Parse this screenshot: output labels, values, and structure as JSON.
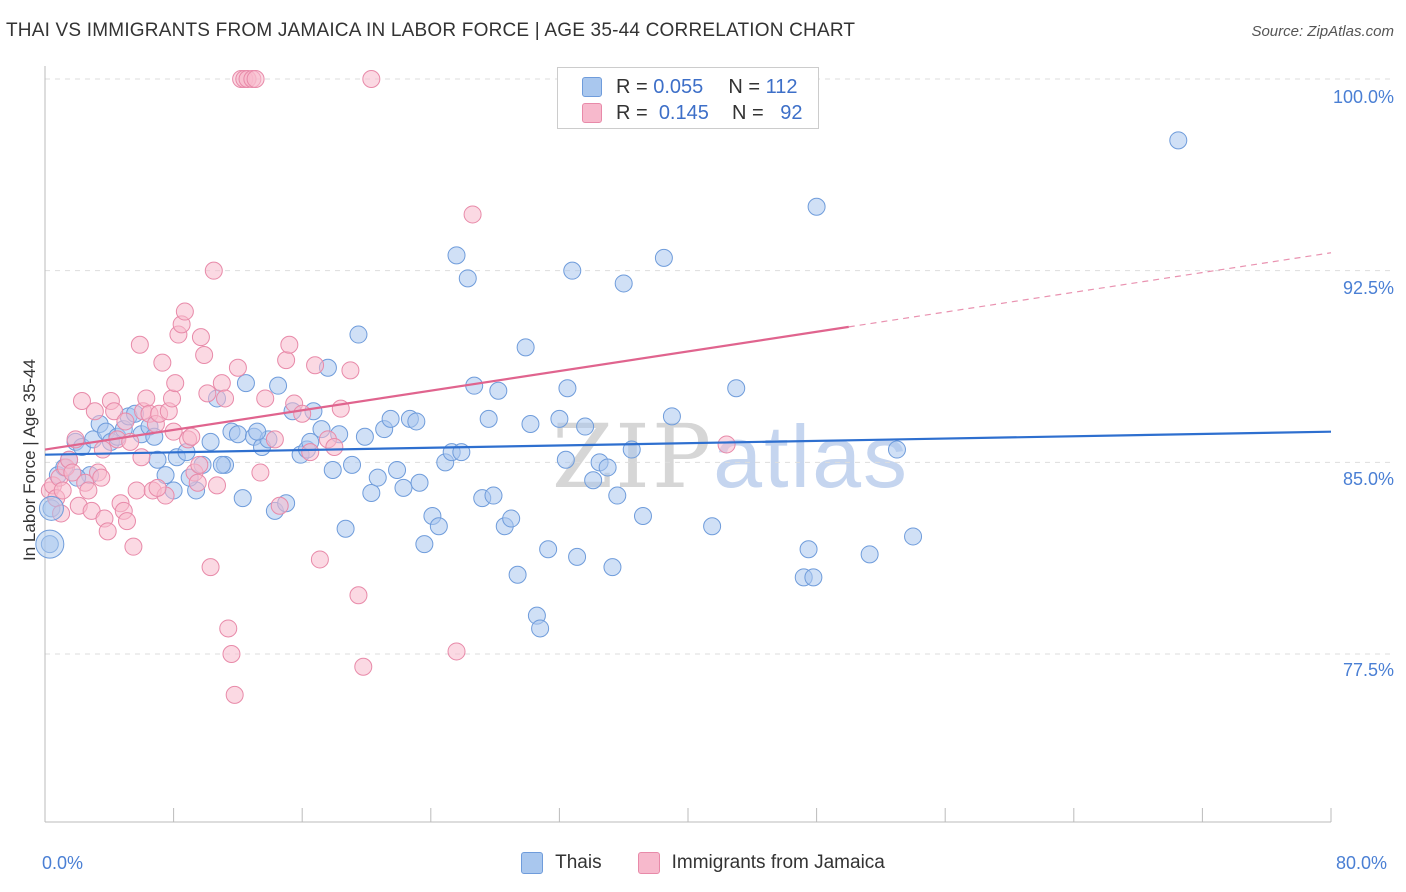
{
  "title": "THAI VS IMMIGRANTS FROM JAMAICA IN LABOR FORCE | AGE 35-44 CORRELATION CHART",
  "source": "Source: ZipAtlas.com",
  "watermark": {
    "part1": "ZIP",
    "part2": "atlas"
  },
  "colors": {
    "thai_fill": "#a9c7ee",
    "thai_stroke": "#6f9cdb",
    "thai_line": "#2e6fcf",
    "jam_fill": "#f7b9cc",
    "jam_stroke": "#e88aa9",
    "jam_line": "#e0648e",
    "grid": "#dddddd",
    "axis_text": "#4a7fd4"
  },
  "legend_top": {
    "rows": [
      {
        "r_label": "R =",
        "r_value": "0.055",
        "n_label": "N =",
        "n_value": "112"
      },
      {
        "r_label": "R =",
        "r_value": "0.145",
        "n_label": "N =",
        "n_value": "92"
      }
    ]
  },
  "legend_bottom": {
    "thai": "Thais",
    "jamaica": "Immigrants from Jamaica"
  },
  "chart_data": {
    "type": "scatter",
    "title": "THAI VS IMMIGRANTS FROM JAMAICA IN LABOR FORCE | AGE 35-44 CORRELATION CHART",
    "xlabel": "",
    "ylabel": "In Labor Force | Age 35-44",
    "xlim": [
      0,
      80
    ],
    "ylim": [
      70,
      101
    ],
    "x_tick_labels": [
      "0.0%",
      "80.0%"
    ],
    "y_ticks": [
      77.5,
      85.0,
      92.5,
      100.0
    ],
    "y_tick_labels": [
      "77.5%",
      "85.0%",
      "92.5%",
      "100.0%"
    ],
    "grid": true,
    "legend_position": "top-center",
    "series": [
      {
        "name": "Thais",
        "R": 0.055,
        "N": 112,
        "trend": {
          "x0": 0,
          "y0": 85.3,
          "x1": 80,
          "y1": 86.2
        },
        "points": [
          [
            0.4,
            83.2
          ],
          [
            0.3,
            81.8
          ],
          [
            0.8,
            84.5
          ],
          [
            1.2,
            84.8
          ],
          [
            1.5,
            85.1
          ],
          [
            1.9,
            85.8
          ],
          [
            2.3,
            85.6
          ],
          [
            2.8,
            84.5
          ],
          [
            3.0,
            85.9
          ],
          [
            3.4,
            86.5
          ],
          [
            3.8,
            86.2
          ],
          [
            4.1,
            85.8
          ],
          [
            4.5,
            86.0
          ],
          [
            4.9,
            86.3
          ],
          [
            5.2,
            86.8
          ],
          [
            5.6,
            86.9
          ],
          [
            6.0,
            86.1
          ],
          [
            6.5,
            86.4
          ],
          [
            7.0,
            85.1
          ],
          [
            7.5,
            84.5
          ],
          [
            8.0,
            83.9
          ],
          [
            8.2,
            85.2
          ],
          [
            8.8,
            85.4
          ],
          [
            9.4,
            83.9
          ],
          [
            9.8,
            84.9
          ],
          [
            10.3,
            85.8
          ],
          [
            10.7,
            87.5
          ],
          [
            11.2,
            84.9
          ],
          [
            11.6,
            86.2
          ],
          [
            12.0,
            86.1
          ],
          [
            12.3,
            83.6
          ],
          [
            12.5,
            88.1
          ],
          [
            13.0,
            86.0
          ],
          [
            13.5,
            85.6
          ],
          [
            13.9,
            85.9
          ],
          [
            14.3,
            83.1
          ],
          [
            14.5,
            88.0
          ],
          [
            15.0,
            83.4
          ],
          [
            15.4,
            87.0
          ],
          [
            15.9,
            85.3
          ],
          [
            16.3,
            85.5
          ],
          [
            16.7,
            87.0
          ],
          [
            17.2,
            86.3
          ],
          [
            17.6,
            88.7
          ],
          [
            17.9,
            84.7
          ],
          [
            18.3,
            86.1
          ],
          [
            18.7,
            82.4
          ],
          [
            19.1,
            84.9
          ],
          [
            19.5,
            90.0
          ],
          [
            19.9,
            86.0
          ],
          [
            20.3,
            83.8
          ],
          [
            20.7,
            84.4
          ],
          [
            21.1,
            86.3
          ],
          [
            21.5,
            86.7
          ],
          [
            21.9,
            84.7
          ],
          [
            22.3,
            84.0
          ],
          [
            22.7,
            86.7
          ],
          [
            23.1,
            86.6
          ],
          [
            23.3,
            84.2
          ],
          [
            23.6,
            81.8
          ],
          [
            24.1,
            82.9
          ],
          [
            24.5,
            82.5
          ],
          [
            24.9,
            85.0
          ],
          [
            25.3,
            85.4
          ],
          [
            25.6,
            93.1
          ],
          [
            25.9,
            85.4
          ],
          [
            26.3,
            92.2
          ],
          [
            26.7,
            88.0
          ],
          [
            27.2,
            83.6
          ],
          [
            27.6,
            86.7
          ],
          [
            27.9,
            83.7
          ],
          [
            28.2,
            87.8
          ],
          [
            28.6,
            82.5
          ],
          [
            29.0,
            82.8
          ],
          [
            29.4,
            80.6
          ],
          [
            29.9,
            89.5
          ],
          [
            30.2,
            86.5
          ],
          [
            30.6,
            79.0
          ],
          [
            30.8,
            78.5
          ],
          [
            31.3,
            81.6
          ],
          [
            32.0,
            86.7
          ],
          [
            32.4,
            85.1
          ],
          [
            32.8,
            92.5
          ],
          [
            32.5,
            87.9
          ],
          [
            33.1,
            81.3
          ],
          [
            33.6,
            86.4
          ],
          [
            34.1,
            84.3
          ],
          [
            34.5,
            85.0
          ],
          [
            35.0,
            84.8
          ],
          [
            35.3,
            80.9
          ],
          [
            35.6,
            83.7
          ],
          [
            36.0,
            92.0
          ],
          [
            36.5,
            85.5
          ],
          [
            37.2,
            82.9
          ],
          [
            38.5,
            93.0
          ],
          [
            39.0,
            86.8
          ],
          [
            41.5,
            82.5
          ],
          [
            43.0,
            87.9
          ],
          [
            47.2,
            80.5
          ],
          [
            47.5,
            81.6
          ],
          [
            47.8,
            80.5
          ],
          [
            48.0,
            95.0
          ],
          [
            51.3,
            81.4
          ],
          [
            53.0,
            85.5
          ],
          [
            54.0,
            82.1
          ],
          [
            70.5,
            97.6
          ],
          [
            2.0,
            84.4
          ],
          [
            6.8,
            86.0
          ],
          [
            9.0,
            84.4
          ],
          [
            11.0,
            84.9
          ],
          [
            13.2,
            86.2
          ],
          [
            16.5,
            85.8
          ]
        ]
      },
      {
        "name": "Immigrants from Jamaica",
        "R": 0.145,
        "N": 92,
        "trend": {
          "x0": 0,
          "y0": 85.5,
          "x1": 50,
          "y1": 90.3
        },
        "trend_dashed": {
          "x0": 50,
          "y0": 90.3,
          "x1": 80,
          "y1": 93.2
        },
        "points": [
          [
            0.3,
            83.9
          ],
          [
            0.5,
            84.1
          ],
          [
            0.7,
            83.6
          ],
          [
            0.9,
            84.4
          ],
          [
            1.1,
            83.9
          ],
          [
            1.3,
            84.8
          ],
          [
            1.5,
            85.1
          ],
          [
            1.7,
            84.6
          ],
          [
            1.9,
            85.9
          ],
          [
            2.1,
            83.3
          ],
          [
            2.3,
            87.4
          ],
          [
            2.5,
            84.2
          ],
          [
            2.7,
            83.9
          ],
          [
            2.9,
            83.1
          ],
          [
            3.1,
            87.0
          ],
          [
            3.3,
            84.6
          ],
          [
            3.5,
            84.4
          ],
          [
            3.7,
            82.8
          ],
          [
            3.9,
            82.3
          ],
          [
            4.1,
            87.4
          ],
          [
            4.3,
            87.0
          ],
          [
            4.5,
            85.9
          ],
          [
            4.7,
            83.4
          ],
          [
            4.9,
            83.1
          ],
          [
            5.1,
            82.7
          ],
          [
            5.3,
            85.8
          ],
          [
            5.5,
            81.7
          ],
          [
            5.7,
            83.9
          ],
          [
            5.9,
            89.6
          ],
          [
            6.1,
            87.0
          ],
          [
            6.3,
            87.5
          ],
          [
            6.5,
            86.9
          ],
          [
            6.7,
            83.9
          ],
          [
            6.9,
            86.5
          ],
          [
            7.1,
            86.9
          ],
          [
            7.3,
            88.9
          ],
          [
            7.5,
            83.7
          ],
          [
            7.7,
            87.0
          ],
          [
            7.9,
            87.5
          ],
          [
            8.1,
            88.1
          ],
          [
            8.3,
            90.0
          ],
          [
            8.5,
            90.4
          ],
          [
            8.7,
            90.9
          ],
          [
            8.9,
            85.9
          ],
          [
            9.1,
            86.0
          ],
          [
            9.3,
            84.6
          ],
          [
            9.5,
            84.2
          ],
          [
            9.7,
            89.9
          ],
          [
            9.9,
            89.2
          ],
          [
            10.1,
            87.7
          ],
          [
            10.3,
            80.9
          ],
          [
            10.5,
            92.5
          ],
          [
            10.7,
            84.1
          ],
          [
            11.0,
            88.1
          ],
          [
            11.2,
            87.5
          ],
          [
            11.4,
            78.5
          ],
          [
            11.6,
            77.5
          ],
          [
            11.8,
            75.9
          ],
          [
            12.0,
            88.7
          ],
          [
            12.2,
            100.0
          ],
          [
            12.4,
            100.0
          ],
          [
            12.6,
            100.0
          ],
          [
            12.9,
            100.0
          ],
          [
            13.1,
            100.0
          ],
          [
            13.4,
            84.6
          ],
          [
            13.7,
            87.5
          ],
          [
            14.3,
            85.9
          ],
          [
            14.6,
            83.3
          ],
          [
            15.0,
            89.0
          ],
          [
            15.2,
            89.6
          ],
          [
            15.5,
            87.3
          ],
          [
            16.0,
            86.9
          ],
          [
            16.5,
            85.4
          ],
          [
            16.8,
            88.8
          ],
          [
            17.1,
            81.2
          ],
          [
            17.6,
            85.9
          ],
          [
            18.0,
            85.6
          ],
          [
            18.4,
            87.1
          ],
          [
            19.0,
            88.6
          ],
          [
            19.5,
            79.8
          ],
          [
            19.8,
            77.0
          ],
          [
            20.3,
            100.0
          ],
          [
            25.6,
            77.6
          ],
          [
            26.6,
            94.7
          ],
          [
            42.4,
            85.7
          ],
          [
            5.0,
            86.6
          ],
          [
            6.0,
            85.2
          ],
          [
            7.0,
            84.0
          ],
          [
            8.0,
            86.2
          ],
          [
            9.6,
            84.9
          ],
          [
            3.6,
            85.5
          ],
          [
            1.0,
            83.0
          ]
        ]
      }
    ]
  }
}
